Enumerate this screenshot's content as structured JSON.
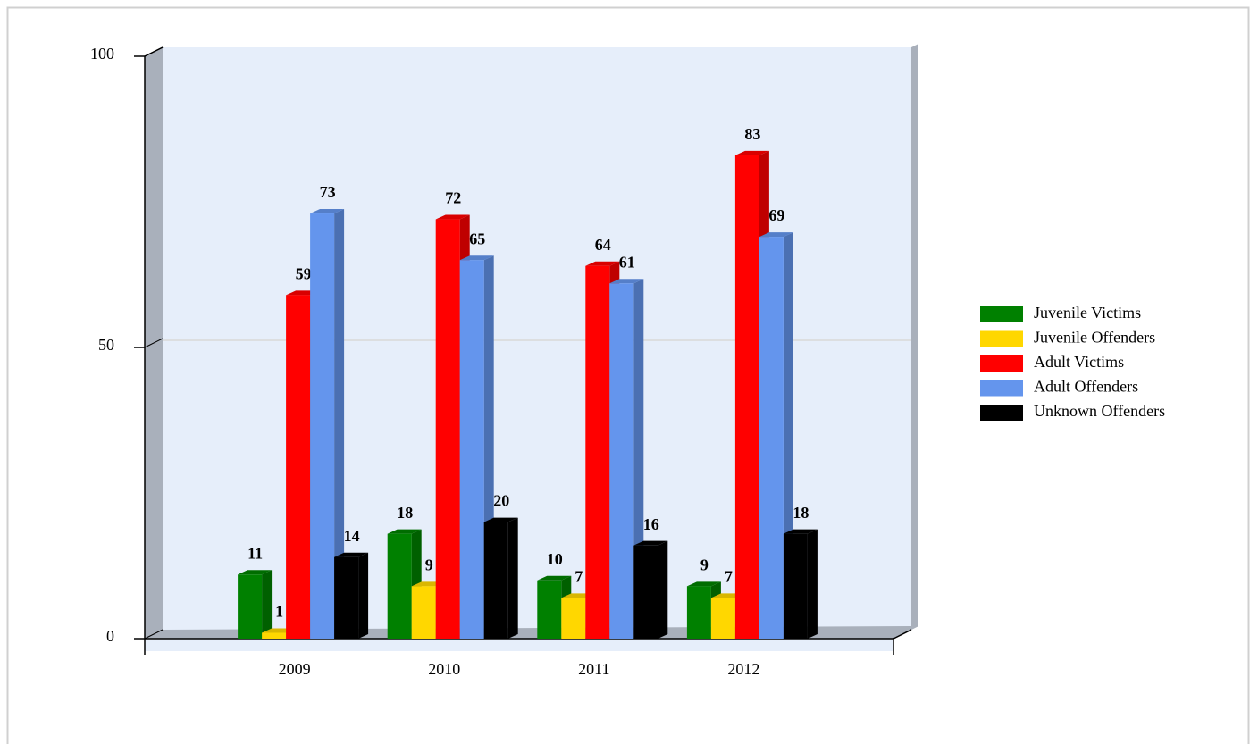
{
  "chart_data": {
    "type": "bar3d",
    "categories": [
      "2009",
      "2010",
      "2011",
      "2012"
    ],
    "series": [
      {
        "name": "Juvenile Victims",
        "color": "#008000",
        "values": [
          11,
          18,
          10,
          9
        ]
      },
      {
        "name": "Juvenile Offenders",
        "color": "#ffd700",
        "values": [
          1,
          9,
          7,
          7
        ]
      },
      {
        "name": "Adult Victims",
        "color": "#ff0000",
        "values": [
          59,
          72,
          64,
          83
        ]
      },
      {
        "name": "Adult Offenders",
        "color": "#6495ed",
        "values": [
          73,
          65,
          61,
          69
        ]
      },
      {
        "name": "Unknown Offenders",
        "color": "#000000",
        "values": [
          14,
          20,
          16,
          18
        ]
      }
    ],
    "ylim": [
      0,
      100
    ],
    "yticks": [
      0,
      50,
      100
    ],
    "grid": true,
    "legend": "right"
  }
}
